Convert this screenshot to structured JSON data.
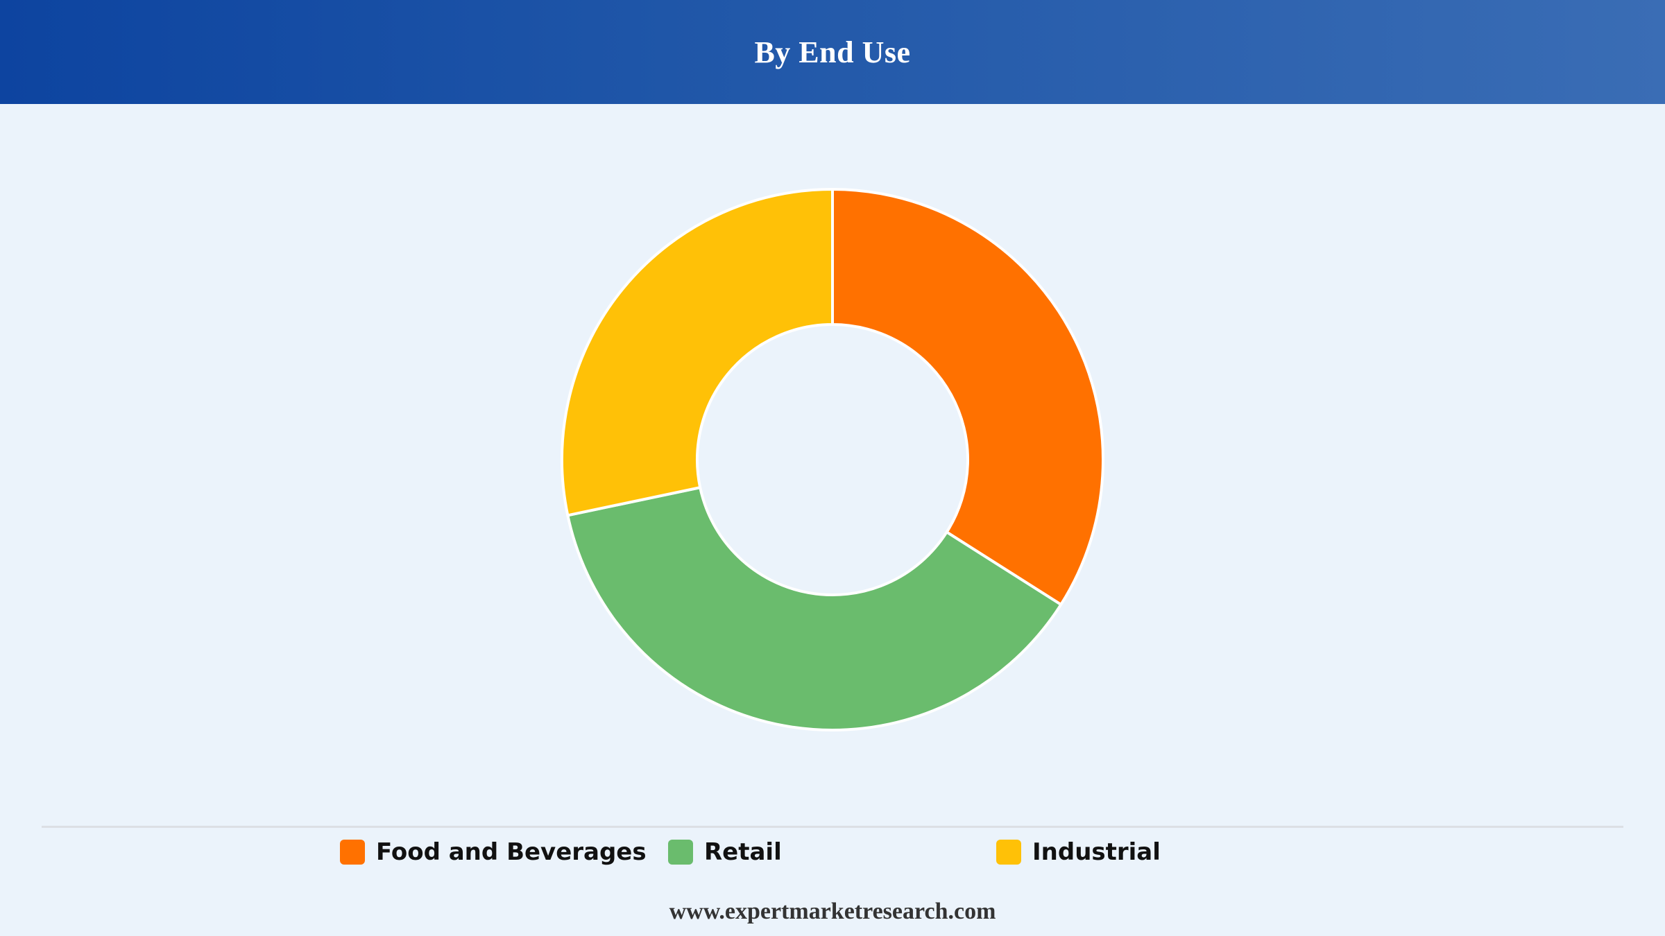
{
  "header": {
    "title": "By End Use"
  },
  "chart_data": {
    "type": "pie",
    "variant": "donut",
    "title": "By End Use",
    "start_angle_deg": 0,
    "direction": "clockwise",
    "slices": [
      {
        "label": "Food and Beverages",
        "value": 34.0,
        "color": "#ff7100"
      },
      {
        "label": "Retail",
        "value": 37.7,
        "color": "#6abc6d"
      },
      {
        "label": "Industrial",
        "value": 28.3,
        "color": "#ffc107"
      }
    ],
    "slice_border_color": "#ffffff",
    "legend_position": "bottom"
  },
  "legend": {
    "items": [
      {
        "label": "Food and Beverages",
        "color": "#ff7100"
      },
      {
        "label": "Retail",
        "color": "#6abc6d"
      },
      {
        "label": "Industrial",
        "color": "#ffc107"
      }
    ]
  },
  "footer": {
    "source": "www.expertmarketresearch.com"
  },
  "colors": {
    "header_gradient_start": "#0d44a0",
    "header_gradient_end": "#3a6db5",
    "background": "#ebf3fb"
  }
}
